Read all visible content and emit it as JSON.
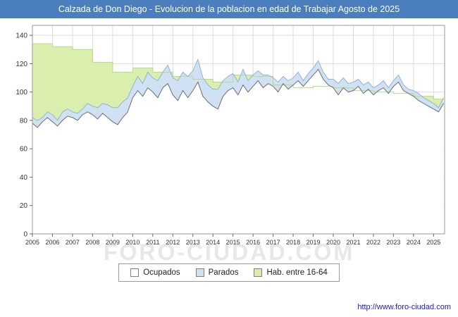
{
  "titlebar": {
    "title": "Calzada de Don Diego - Evolucion de la poblacion en edad de Trabajar Agosto de 2025",
    "bg": "#4a7ebd"
  },
  "chart_data": {
    "type": "area",
    "title": "Calzada de Don Diego - Evolucion de la poblacion en edad de Trabajar Agosto de 2025",
    "xlabel": "",
    "ylabel": "",
    "ylim": [
      0,
      140
    ],
    "y_plot_max": 147,
    "x_start": 2005,
    "x_step": 0.25,
    "x_axis_max": 2025.55,
    "yticks": [
      0,
      20,
      40,
      60,
      80,
      100,
      120,
      140
    ],
    "xticks": [
      2005,
      2006,
      2007,
      2008,
      2009,
      2010,
      2011,
      2012,
      2013,
      2014,
      2015,
      2016,
      2017,
      2018,
      2019,
      2020,
      2021,
      2022,
      2023,
      2024,
      2025
    ],
    "grid": true,
    "legend_position": "bottom",
    "colors": {
      "grid": "#dcdcdc",
      "border": "#999999",
      "axis": "#666666",
      "text": "#333333"
    },
    "series": [
      {
        "id": "hab",
        "name": "Hab. entre 16-64",
        "fill": "#daefae",
        "stroke": "#b5d98e",
        "cadence": "yearly-step",
        "years": [
          134,
          132,
          130,
          121,
          114,
          117,
          114,
          111,
          109,
          107,
          112,
          111,
          105,
          103,
          104,
          103,
          101,
          100,
          99,
          97,
          95
        ]
      },
      {
        "id": "parados",
        "name": "Parados",
        "fill": "#cfe1f2",
        "stroke": "#92b4d4",
        "cadence": "quarterly",
        "stacked_on": "ocupados",
        "values": [
          4,
          5,
          3,
          4,
          5,
          4,
          6,
          5,
          4,
          5,
          4,
          6,
          6,
          8,
          7,
          9,
          10,
          12,
          11,
          10,
          8,
          10,
          9,
          11,
          10,
          12,
          11,
          13,
          12,
          14,
          13,
          15,
          14,
          16,
          13,
          12,
          12,
          14,
          11,
          10,
          10,
          9,
          11,
          8,
          8,
          7,
          9,
          6,
          6,
          7,
          5,
          6,
          5,
          6,
          4,
          5,
          5,
          6,
          5,
          4,
          6,
          8,
          7,
          6,
          6,
          5,
          6,
          5,
          5,
          4,
          5,
          4,
          4,
          5,
          4,
          3,
          4,
          5,
          4,
          4,
          4,
          3,
          4
        ]
      },
      {
        "id": "ocupados",
        "name": "Ocupados",
        "fill": "#ffffff",
        "stroke": "#6e6e6e",
        "cadence": "quarterly",
        "values": [
          78,
          75,
          79,
          82,
          79,
          76,
          80,
          83,
          82,
          80,
          84,
          86,
          84,
          81,
          85,
          82,
          79,
          77,
          82,
          86,
          96,
          101,
          97,
          103,
          100,
          96,
          103,
          106,
          98,
          94,
          101,
          96,
          101,
          107,
          97,
          93,
          90,
          88,
          97,
          101,
          103,
          98,
          105,
          100,
          104,
          108,
          103,
          106,
          104,
          100,
          106,
          102,
          105,
          108,
          104,
          108,
          112,
          116,
          109,
          105,
          103,
          98,
          103,
          100,
          101,
          104,
          99,
          102,
          98,
          101,
          103,
          99,
          104,
          107,
          101,
          99,
          97,
          94,
          92,
          90,
          88,
          86,
          92
        ]
      }
    ]
  },
  "legend": {
    "items": [
      {
        "label": "Ocupados",
        "fill": "#ffffff",
        "stroke_border": "#808080"
      },
      {
        "label": "Parados",
        "fill": "#cfe1f2",
        "stroke_border": "#808080"
      },
      {
        "label": "Hab. entre 16-64",
        "fill": "#daefae",
        "stroke_border": "#808080"
      }
    ]
  },
  "watermark": "FORO-CIUDAD.COM",
  "footer": {
    "url": "http://www.foro-ciudad.com"
  }
}
